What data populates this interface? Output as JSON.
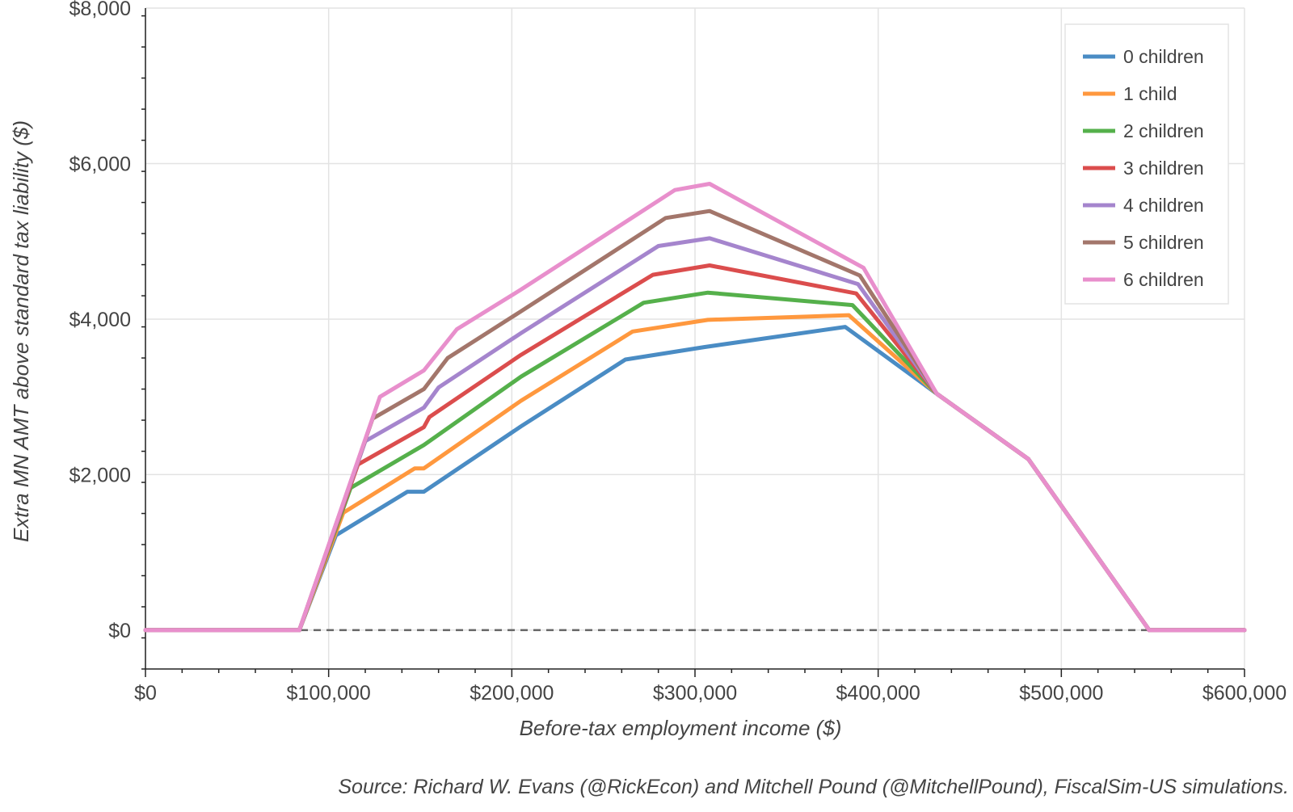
{
  "chart_data": {
    "type": "line",
    "title": "",
    "xlabel": "Before-tax employment income ($)",
    "ylabel": "Extra MN AMT above standard tax liability ($)",
    "source": "Source: Richard W. Evans (@RickEcon) and Mitchell Pound (@MitchellPound), FiscalSim-US simulations.",
    "xlim": [
      0,
      600000
    ],
    "ylim": [
      -500,
      8000
    ],
    "x_ticks": [
      0,
      100000,
      200000,
      300000,
      400000,
      500000,
      600000
    ],
    "x_tick_labels": [
      "$0",
      "$100,000",
      "$200,000",
      "$300,000",
      "$400,000",
      "$500,000",
      "$600,000"
    ],
    "y_ticks": [
      0,
      2000,
      4000,
      6000,
      8000
    ],
    "y_tick_labels": [
      "$0",
      "$2,000",
      "$4,000",
      "$6,000",
      "$8,000"
    ],
    "grid": true,
    "legend_position": "top-right",
    "reference_line": {
      "y": 0,
      "style": "dashed",
      "color": "#666666"
    },
    "series": [
      {
        "name": "0 children",
        "color": "#4a8cc4",
        "x": [
          0,
          84000,
          104000,
          143000,
          152000,
          205000,
          262000,
          305000,
          382000,
          432000,
          482000,
          548000,
          600000
        ],
        "y": [
          0,
          0,
          1220,
          1780,
          1780,
          2620,
          3480,
          3640,
          3900,
          3040,
          2200,
          0,
          0
        ]
      },
      {
        "name": "1 child",
        "color": "#ff983e",
        "x": [
          0,
          84000,
          108000,
          147000,
          152000,
          205000,
          266000,
          307000,
          384000,
          432000,
          482000,
          548000,
          600000
        ],
        "y": [
          0,
          0,
          1510,
          2080,
          2080,
          2950,
          3840,
          3990,
          4050,
          3040,
          2200,
          0,
          0
        ]
      },
      {
        "name": "2 children",
        "color": "#55b04b",
        "x": [
          0,
          84000,
          112000,
          152000,
          205000,
          272000,
          307000,
          386000,
          432000,
          482000,
          548000,
          600000
        ],
        "y": [
          0,
          0,
          1830,
          2380,
          3260,
          4210,
          4340,
          4180,
          3040,
          2200,
          0,
          0
        ]
      },
      {
        "name": "3 children",
        "color": "#db4d4d",
        "x": [
          0,
          84000,
          116000,
          152000,
          155000,
          205000,
          277000,
          308000,
          388000,
          432000,
          482000,
          548000,
          600000
        ],
        "y": [
          0,
          0,
          2130,
          2610,
          2740,
          3540,
          4570,
          4690,
          4330,
          3040,
          2200,
          0,
          0
        ]
      },
      {
        "name": "4 children",
        "color": "#a585cd",
        "x": [
          0,
          84000,
          120000,
          152000,
          160000,
          205000,
          280000,
          308000,
          389000,
          432000,
          482000,
          548000,
          600000
        ],
        "y": [
          0,
          0,
          2430,
          2860,
          3120,
          3820,
          4940,
          5040,
          4450,
          3040,
          2200,
          0,
          0
        ]
      },
      {
        "name": "5 children",
        "color": "#a3766b",
        "x": [
          0,
          84000,
          124000,
          152000,
          165000,
          205000,
          284000,
          308000,
          390000,
          432000,
          482000,
          548000,
          600000
        ],
        "y": [
          0,
          0,
          2720,
          3100,
          3500,
          4100,
          5300,
          5390,
          4560,
          3040,
          2200,
          0,
          0
        ]
      },
      {
        "name": "6 children",
        "color": "#e88fcc",
        "x": [
          0,
          84000,
          128000,
          152000,
          170000,
          205000,
          289000,
          308000,
          392000,
          432000,
          482000,
          548000,
          600000
        ],
        "y": [
          0,
          0,
          3000,
          3340,
          3870,
          4380,
          5660,
          5740,
          4660,
          3040,
          2200,
          0,
          0
        ]
      }
    ]
  }
}
